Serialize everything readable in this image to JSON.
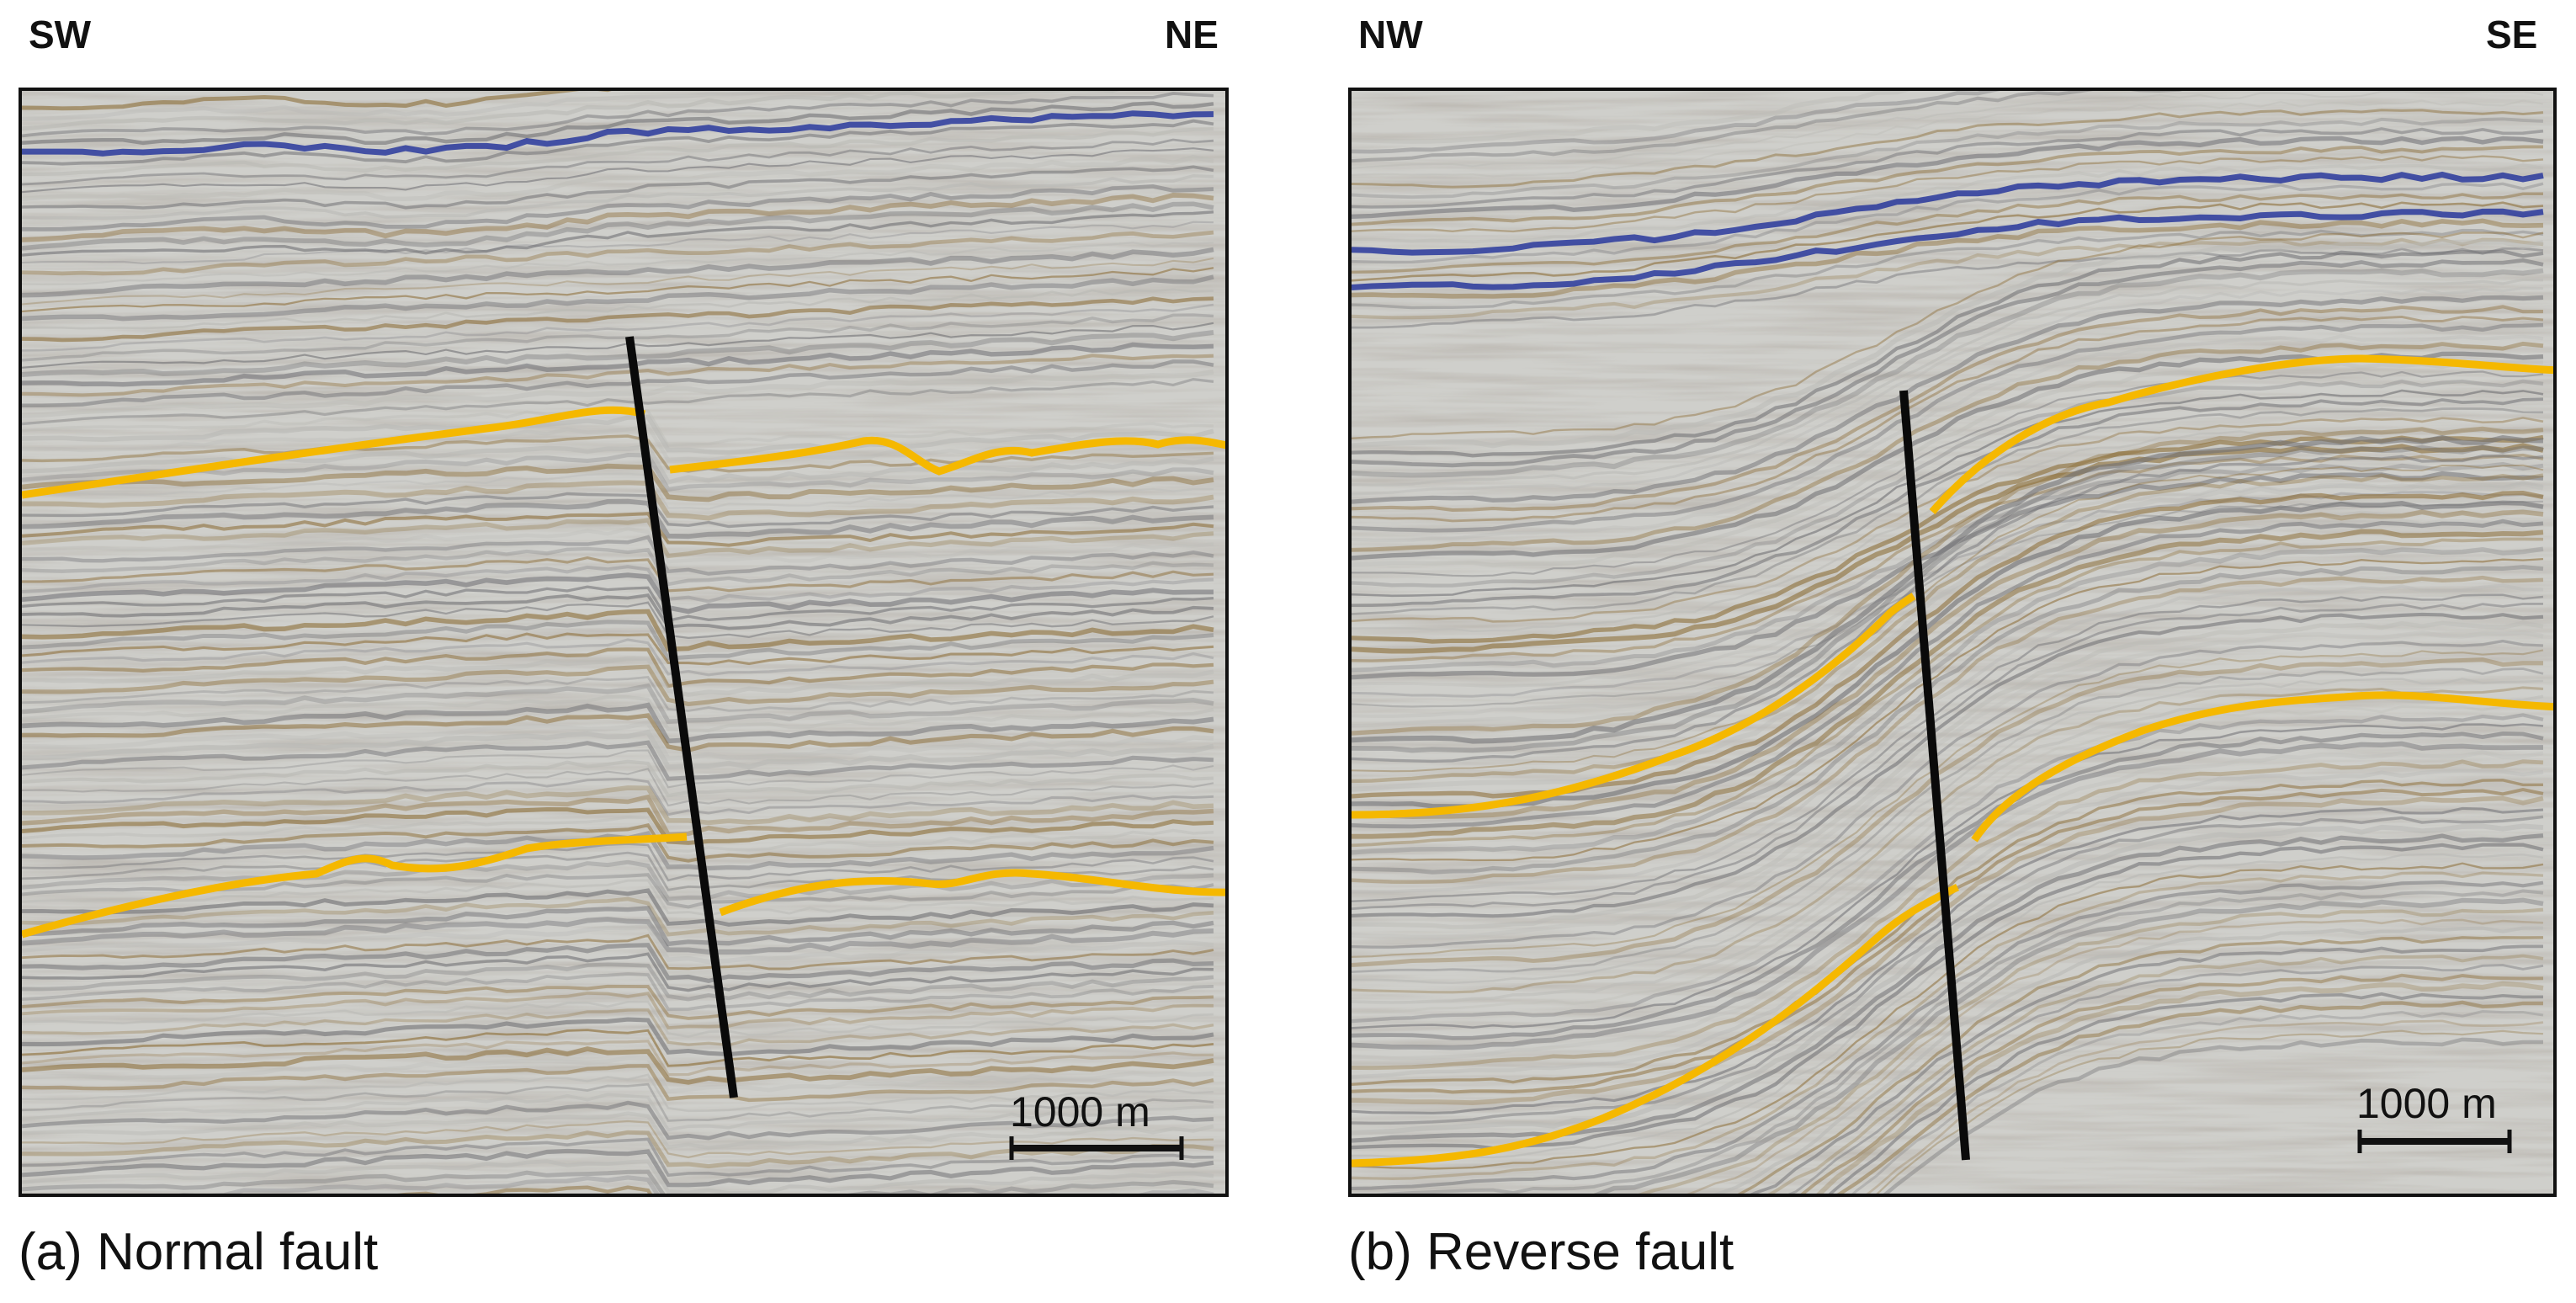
{
  "panels": [
    {
      "left_direction": "SW",
      "right_direction": "NE",
      "scale_bar": "1000 m",
      "caption": "(a) Normal fault",
      "fault_type": "normal"
    },
    {
      "left_direction": "NW",
      "right_direction": "SE",
      "scale_bar": "1000 m",
      "caption": "(b) Reverse fault",
      "fault_type": "reverse"
    }
  ],
  "colors": {
    "horizon": "#f5b800",
    "fault": "#0a0a0a",
    "strong_reflector": "#1f2f9a",
    "brown_reflector": "#7d5d2a",
    "background": "#cfcfcb"
  }
}
